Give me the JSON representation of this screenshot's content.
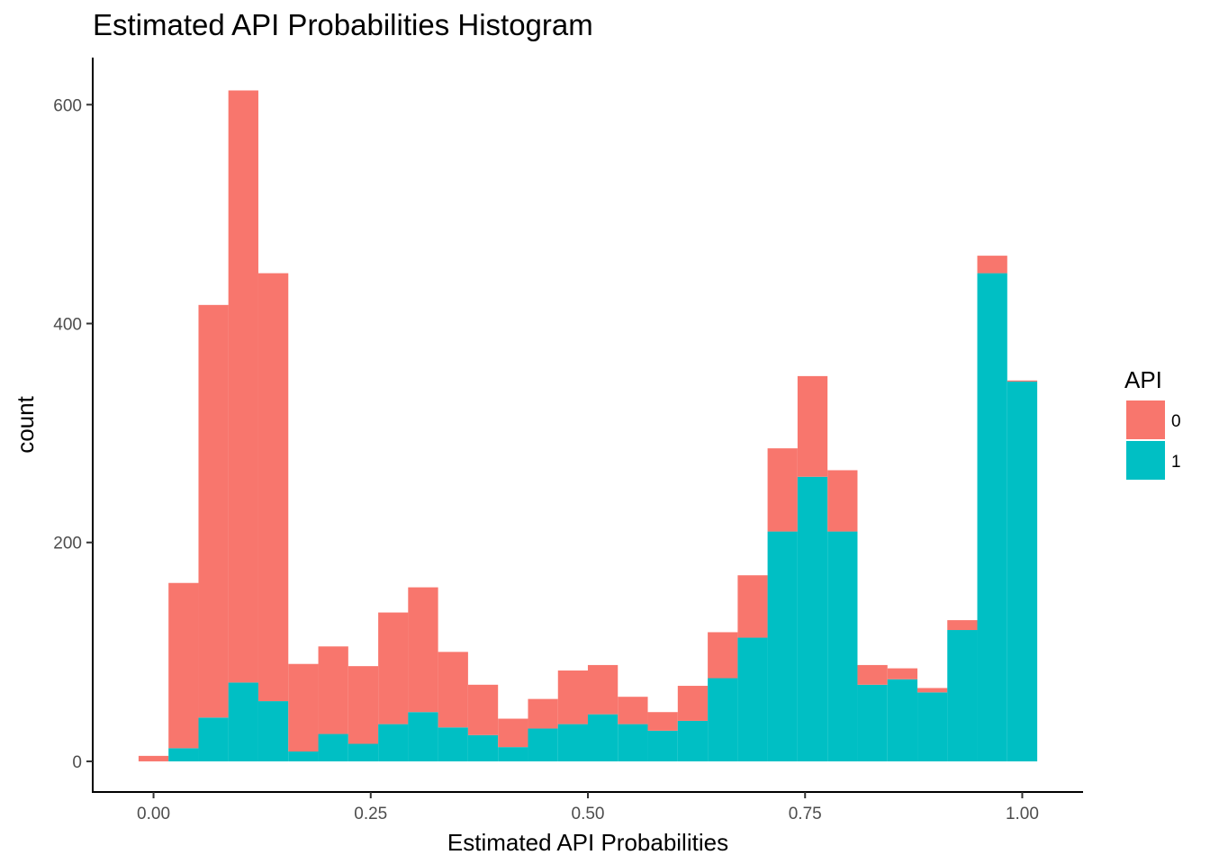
{
  "chart_data": {
    "type": "bar",
    "stacked": true,
    "title": "Estimated API Probabilities Histogram",
    "xlabel": "Estimated API Probabilities",
    "ylabel": "count",
    "xlim": [
      -0.07,
      1.07
    ],
    "ylim": [
      -28,
      643
    ],
    "xticks": [
      0.0,
      0.25,
      0.5,
      0.75,
      1.0
    ],
    "xtick_labels": [
      "0.00",
      "0.25",
      "0.50",
      "0.75",
      "1.00"
    ],
    "yticks": [
      0,
      200,
      400,
      600
    ],
    "ytick_labels": [
      "0",
      "200",
      "400",
      "600"
    ],
    "grid": false,
    "legend": {
      "title": "API",
      "position": "right"
    },
    "bin_width": 0.0345,
    "bin_centers": [
      0.0,
      0.0345,
      0.069,
      0.1034,
      0.1379,
      0.1724,
      0.2069,
      0.2414,
      0.2759,
      0.3103,
      0.3448,
      0.3793,
      0.4138,
      0.4483,
      0.4828,
      0.5172,
      0.5517,
      0.5862,
      0.6207,
      0.6552,
      0.6897,
      0.7241,
      0.7586,
      0.7931,
      0.8276,
      0.8621,
      0.8966,
      0.931,
      0.9655,
      1.0
    ],
    "series": [
      {
        "name": "0",
        "color": "#F8766D",
        "values": [
          5,
          151,
          377,
          541,
          391,
          80,
          80,
          71,
          102,
          114,
          69,
          46,
          26,
          27,
          49,
          45,
          25,
          17,
          32,
          42,
          57,
          76,
          92,
          56,
          18,
          10,
          4,
          9,
          16,
          1
        ]
      },
      {
        "name": "1",
        "color": "#00BFC4",
        "values": [
          0,
          12,
          40,
          72,
          55,
          9,
          25,
          16,
          34,
          45,
          31,
          24,
          13,
          30,
          34,
          43,
          34,
          28,
          37,
          76,
          113,
          210,
          260,
          210,
          70,
          75,
          63,
          120,
          446,
          347
        ]
      }
    ]
  }
}
